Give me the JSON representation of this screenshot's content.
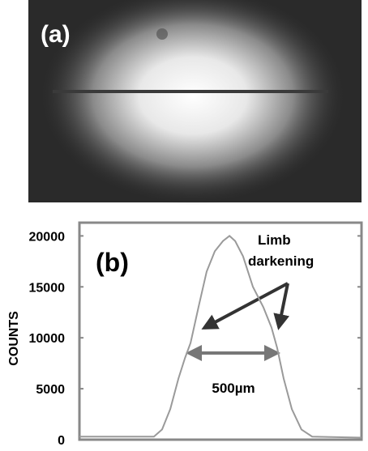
{
  "image_panel": {
    "label": "(a)"
  },
  "chart_data": {
    "type": "line",
    "panel_label": "(b)",
    "y_label": "COUNTS",
    "annotation_lines": [
      "Limb",
      "darkening"
    ],
    "scale_label": "500µm",
    "x": [
      0,
      15,
      26.4,
      29.3,
      32.2,
      35.1,
      37.4,
      39.4,
      42.2,
      45.1,
      48,
      50.9,
      53.2,
      55.2,
      58,
      61.5,
      65.2,
      68.1,
      70.1,
      72.4,
      75.3,
      78.7,
      82.5,
      100
    ],
    "series": [
      {
        "color": "#9a9a9a",
        "values": [
          300,
          300,
          300,
          1000,
          3000,
          6000,
          8000,
          9500,
          13000,
          16500,
          18500,
          19500,
          20000,
          19500,
          18000,
          15000,
          13000,
          11000,
          9000,
          6000,
          3000,
          1000,
          300,
          200
        ]
      }
    ],
    "xlim": [
      0,
      100
    ],
    "ylim": [
      0,
      21300
    ],
    "yticks": [
      0,
      5000,
      10000,
      15000,
      20000
    ]
  }
}
